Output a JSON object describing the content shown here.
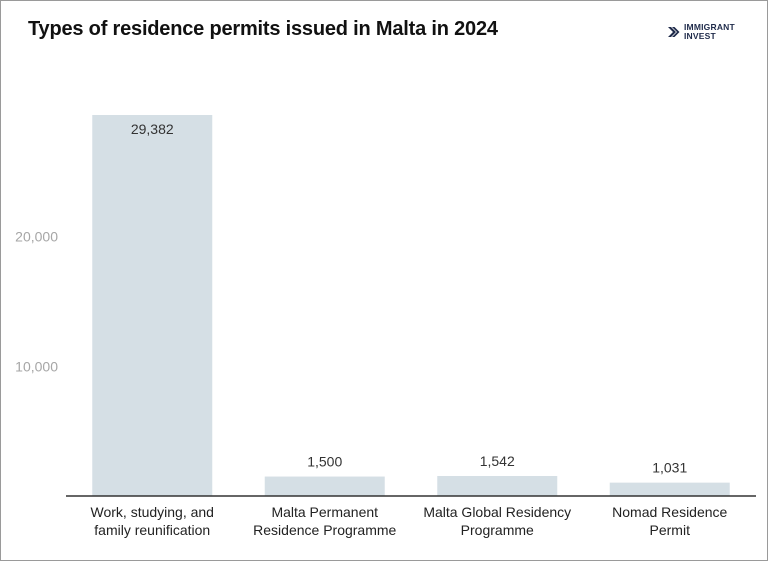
{
  "chart_data": {
    "type": "bar",
    "title": "Types of residence permits issued in Malta in 2024",
    "categories": [
      [
        "Work, studying, and",
        "family reunification"
      ],
      [
        "Malta Permanent",
        "Residence Programme"
      ],
      [
        "Malta Global Residency",
        "Programme"
      ],
      [
        "Nomad Residence",
        "Permit"
      ]
    ],
    "values": [
      29382,
      1500,
      1542,
      1031
    ],
    "value_labels": [
      "29,382",
      "1,500",
      "1,542",
      "1,031"
    ],
    "y_ticks": [
      10000,
      20000
    ],
    "y_tick_labels": [
      "10,000",
      "20,000"
    ],
    "ylim": [
      0,
      29382
    ],
    "xlabel": "",
    "ylabel": "",
    "grid": false,
    "bar_color": "#d5dfe5"
  },
  "logo": {
    "line1": "IMMIGRANT",
    "line2": "INVEST",
    "color": "#1e2a4a"
  }
}
